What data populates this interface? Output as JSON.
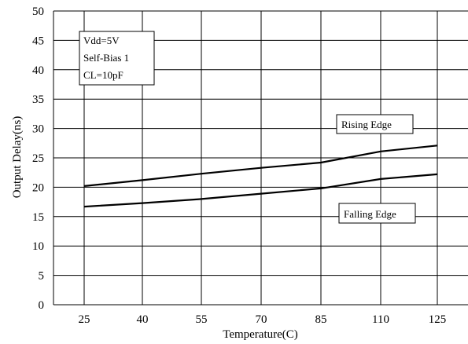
{
  "chart_data": {
    "type": "line",
    "xlabel": "Temperature(C)",
    "ylabel": "Output Delay(ns)",
    "categories": [
      "25",
      "40",
      "55",
      "70",
      "85",
      "110",
      "125"
    ],
    "ylim": [
      0,
      50
    ],
    "yticks": [
      0,
      5,
      10,
      15,
      20,
      25,
      30,
      35,
      40,
      45,
      50
    ],
    "grid": true,
    "conditions": [
      "Vdd=5V",
      "Self-Bias 1",
      "CL=10pF"
    ],
    "series": [
      {
        "name": "Rising Edge",
        "values": [
          20.2,
          21.2,
          22.3,
          23.3,
          24.2,
          26.1,
          27.1
        ]
      },
      {
        "name": "Falling Edge",
        "values": [
          16.7,
          17.3,
          18.0,
          18.9,
          19.8,
          21.4,
          22.2
        ]
      }
    ]
  }
}
